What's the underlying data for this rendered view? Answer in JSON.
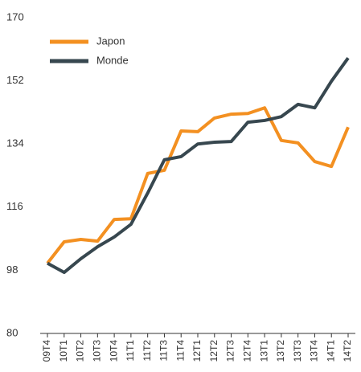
{
  "chart_data": {
    "type": "line",
    "categories": [
      "09T4",
      "10T1",
      "10T2",
      "10T3",
      "10T4",
      "11T1",
      "11T2",
      "11T3",
      "11T4",
      "12T1",
      "12T2",
      "12T3",
      "12T4",
      "13T1",
      "13T2",
      "13T3",
      "13T4",
      "14T1",
      "14T2"
    ],
    "series": [
      {
        "name": "Japon",
        "color": "#f39021",
        "values": [
          100,
          106.1,
          106.8,
          106.3,
          112.5,
          112.7,
          125.6,
          126.5,
          137.7,
          137.5,
          141.4,
          142.5,
          142.7,
          144.3,
          135,
          134.3,
          129,
          127.6,
          138.8
        ]
      },
      {
        "name": "Monde",
        "color": "#37474f",
        "values": [
          100,
          97.4,
          101.3,
          104.7,
          107.5,
          111.1,
          120,
          129.5,
          130.4,
          134,
          134.5,
          134.7,
          140.2,
          140.7,
          141.8,
          145.3,
          144.3,
          151.9,
          158.5
        ]
      }
    ],
    "ylim": [
      80,
      170
    ],
    "yticks": [
      80,
      98,
      116,
      134,
      152,
      170
    ],
    "grid": false,
    "legend": "top-left"
  }
}
